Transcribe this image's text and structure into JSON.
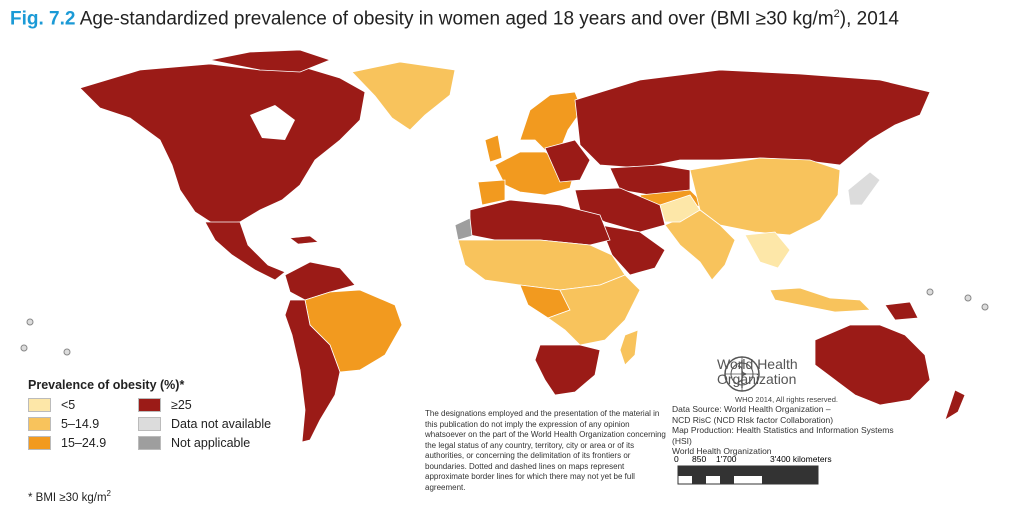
{
  "title": {
    "fig_label": "Fig. 7.2",
    "text_before_sup": "Age-standardized prevalence of obesity in women aged 18 years and over (BMI ≥30 kg/m",
    "sup": "2",
    "text_after_sup": "), 2014"
  },
  "legend": {
    "title": "Prevalence of obesity (%)*",
    "items": [
      {
        "label": "<5",
        "color": "#fde7a8"
      },
      {
        "label": "≥25",
        "color": "#9b1b17"
      },
      {
        "label": "5–14.9",
        "color": "#f8c35c"
      },
      {
        "label": "Data not available",
        "color": "#dcdcdc"
      },
      {
        "label": "15–24.9",
        "color": "#f29a1f"
      },
      {
        "label": "Not applicable",
        "color": "#9e9e9e"
      }
    ]
  },
  "footnote": {
    "text": "* BMI ≥30 kg/m",
    "sup": "2"
  },
  "disclaimer": "The designations employed and the presentation of the material in this publication do not imply the expression of any opinion whatsoever on the part of the World Health Organization concerning the legal status of any country, territory, city or area or of its authorities, or concerning the delimitation of its frontiers or boundaries. Dotted and dashed lines on maps represent approximate border lines for which there may not yet be full agreement.",
  "who": {
    "line1": "World Health",
    "line2": "Organization",
    "rights": "WHO 2014, All rights reserved."
  },
  "source_lines": [
    "Data Source: World Health Organization –",
    "NCD RisC (NCD RIsk factor Collaboration)",
    "Map Production: Health Statistics and Information Systems (HSI)",
    "World Health Organization"
  ],
  "scale": {
    "ticks": [
      "0",
      "850",
      "1'700",
      "3'400 kilometers"
    ]
  },
  "map": {
    "colors": {
      "lt5": "#fde7a8",
      "c5_15": "#f8c35c",
      "c15_25": "#f29a1f",
      "ge25": "#9b1b17",
      "na_data": "#dcdcdc",
      "not_applicable": "#9e9e9e",
      "border": "#ffffff"
    }
  }
}
